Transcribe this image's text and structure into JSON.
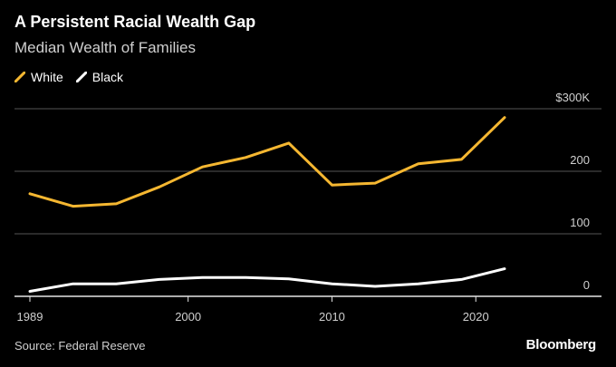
{
  "header": {
    "title": "A Persistent Racial Wealth Gap",
    "subtitle": "Median Wealth of Families"
  },
  "footer": {
    "source": "Source: Federal Reserve",
    "brand": "Bloomberg"
  },
  "chart_data": {
    "type": "line",
    "title": "A Persistent Racial Wealth Gap",
    "subtitle": "Median Wealth of Families",
    "x": [
      1989,
      1992,
      1995,
      1998,
      2001,
      2004,
      2007,
      2010,
      2013,
      2016,
      2019,
      2022
    ],
    "series": [
      {
        "name": "White",
        "color": "#f5b731",
        "values": [
          164,
          144,
          148,
          175,
          207,
          222,
          245,
          178,
          181,
          212,
          219,
          286
        ]
      },
      {
        "name": "Black",
        "color": "#ffffff",
        "values": [
          8,
          20,
          20,
          27,
          30,
          30,
          28,
          20,
          16,
          20,
          27,
          44
        ]
      }
    ],
    "x_ticks": [
      {
        "value": 1989,
        "label": "1989"
      },
      {
        "value": 2000,
        "label": "2000"
      },
      {
        "value": 2010,
        "label": "2010"
      },
      {
        "value": 2020,
        "label": "2020"
      }
    ],
    "y_ticks": [
      {
        "value": 0,
        "label": "0"
      },
      {
        "value": 100,
        "label": "100"
      },
      {
        "value": 200,
        "label": "200"
      },
      {
        "value": 300,
        "label": "$300K"
      }
    ],
    "xlim": [
      1989,
      2027
    ],
    "ylim": [
      0,
      300
    ],
    "grid": true,
    "legend": "top-left"
  }
}
